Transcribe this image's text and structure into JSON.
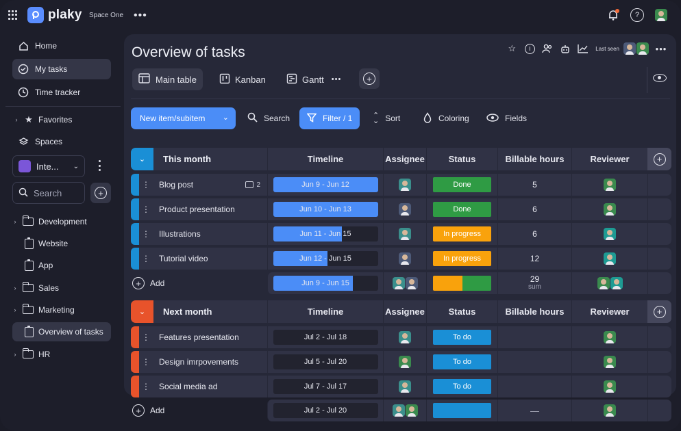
{
  "app": {
    "logo_text": "plaky",
    "space_name": "Space One"
  },
  "sidebar": {
    "top_items": [
      {
        "label": "Home",
        "icon": "home-icon"
      },
      {
        "label": "My tasks",
        "icon": "check-circle-icon"
      },
      {
        "label": "Time tracker",
        "icon": "clock-icon"
      }
    ],
    "favorites": "Favorites",
    "spaces": "Spaces",
    "workspace": "Inte...",
    "search_placeholder": "Search",
    "tree": [
      {
        "label": "Development",
        "type": "folder"
      },
      {
        "label": "Website",
        "type": "board"
      },
      {
        "label": "App",
        "type": "board"
      },
      {
        "label": "Sales",
        "type": "folder"
      },
      {
        "label": "Marketing",
        "type": "folder"
      },
      {
        "label": "Overview of tasks",
        "type": "board"
      },
      {
        "label": "HR",
        "type": "folder"
      }
    ]
  },
  "board": {
    "title": "Overview of tasks",
    "last_seen": "Last seen",
    "views": [
      "Main table",
      "Kanban",
      "Gantt"
    ]
  },
  "toolbar": {
    "new_item": "New item/subitem",
    "search": "Search",
    "filter": "Filter / 1",
    "sort": "Sort",
    "coloring": "Coloring",
    "fields": "Fields"
  },
  "columns": [
    "Timeline",
    "Assignee",
    "Status",
    "Billable hours",
    "Reviewer"
  ],
  "groups": [
    {
      "title": "This month",
      "color": "#1a8fd6",
      "rows": [
        {
          "name": "Blog post",
          "comments": "2",
          "timeline": "Jun 9 - Jun 12",
          "progress": 1.0,
          "status": "Done",
          "status_color": "#2f9b44",
          "hours": "5"
        },
        {
          "name": "Product presentation",
          "comments": "",
          "timeline": "Jun 10 - Jun 13",
          "progress": 1.0,
          "status": "Done",
          "status_color": "#2f9b44",
          "hours": "6"
        },
        {
          "name": "Illustrations",
          "comments": "",
          "timeline": "Jun 11 - Jun 15",
          "progress": 0.66,
          "status": "In progress",
          "status_color": "#f9a20c",
          "hours": "6"
        },
        {
          "name": "Tutorial video",
          "comments": "",
          "timeline": "Jun 12 - Jun 15",
          "progress": 0.52,
          "status": "In progress",
          "status_color": "#f9a20c",
          "hours": "12"
        }
      ],
      "summary": {
        "add": "Add",
        "timeline": "Jun 9 - Jun 15",
        "progress": 0.76,
        "hours": "29",
        "hours_label": "sum"
      }
    },
    {
      "title": "Next month",
      "color": "#e8532b",
      "rows": [
        {
          "name": "Features presentation",
          "timeline": "Jul 2 - Jul 18",
          "status": "To do",
          "status_color": "#1a8fd6"
        },
        {
          "name": "Design imrpovements",
          "timeline": "Jul 5 - Jul 20",
          "status": "To do",
          "status_color": "#1a8fd6"
        },
        {
          "name": "Social media ad",
          "timeline": "Jul 7 - Jul 17",
          "status": "To do",
          "status_color": "#1a8fd6"
        }
      ],
      "summary": {
        "add": "Add",
        "timeline": "Jul 2 - Jul 20",
        "hours": "—"
      }
    }
  ]
}
